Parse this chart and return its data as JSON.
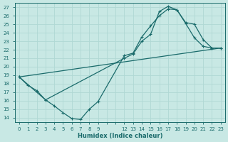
{
  "xlabel": "Humidex (Indice chaleur)",
  "bg_color": "#c8e8e4",
  "grid_color": "#b0d8d4",
  "line_color": "#1a6b6b",
  "xlim": [
    -0.5,
    23.5
  ],
  "ylim": [
    13.5,
    27.5
  ],
  "xticks": [
    0,
    1,
    2,
    3,
    4,
    5,
    6,
    7,
    8,
    9,
    12,
    13,
    14,
    15,
    16,
    17,
    18,
    19,
    20,
    21,
    22,
    23
  ],
  "yticks": [
    14,
    15,
    16,
    17,
    18,
    19,
    20,
    21,
    22,
    23,
    24,
    25,
    26,
    27
  ],
  "line1_x": [
    0,
    1,
    2,
    3,
    4,
    5,
    6,
    7,
    8,
    9,
    12,
    13,
    14,
    15,
    16,
    17,
    18,
    19,
    20,
    21,
    22,
    23
  ],
  "line1_y": [
    18.8,
    17.8,
    17.2,
    16.1,
    15.4,
    14.6,
    13.9,
    13.8,
    15.0,
    15.9,
    21.3,
    21.6,
    23.5,
    24.8,
    26.0,
    26.8,
    26.7,
    25.1,
    23.4,
    22.4,
    22.2,
    22.2
  ],
  "line2_x": [
    0,
    3,
    12,
    13,
    14,
    15,
    16,
    17,
    18,
    19,
    20,
    21,
    22,
    23
  ],
  "line2_y": [
    18.8,
    16.1,
    21.0,
    21.5,
    23.0,
    23.8,
    26.5,
    27.1,
    26.7,
    25.2,
    25.0,
    23.2,
    22.2,
    22.2
  ],
  "line3_x": [
    0,
    23
  ],
  "line3_y": [
    18.8,
    22.2
  ],
  "marker_size": 2.5,
  "linewidth": 0.9,
  "tick_fontsize": 5.0,
  "xlabel_fontsize": 6.0
}
